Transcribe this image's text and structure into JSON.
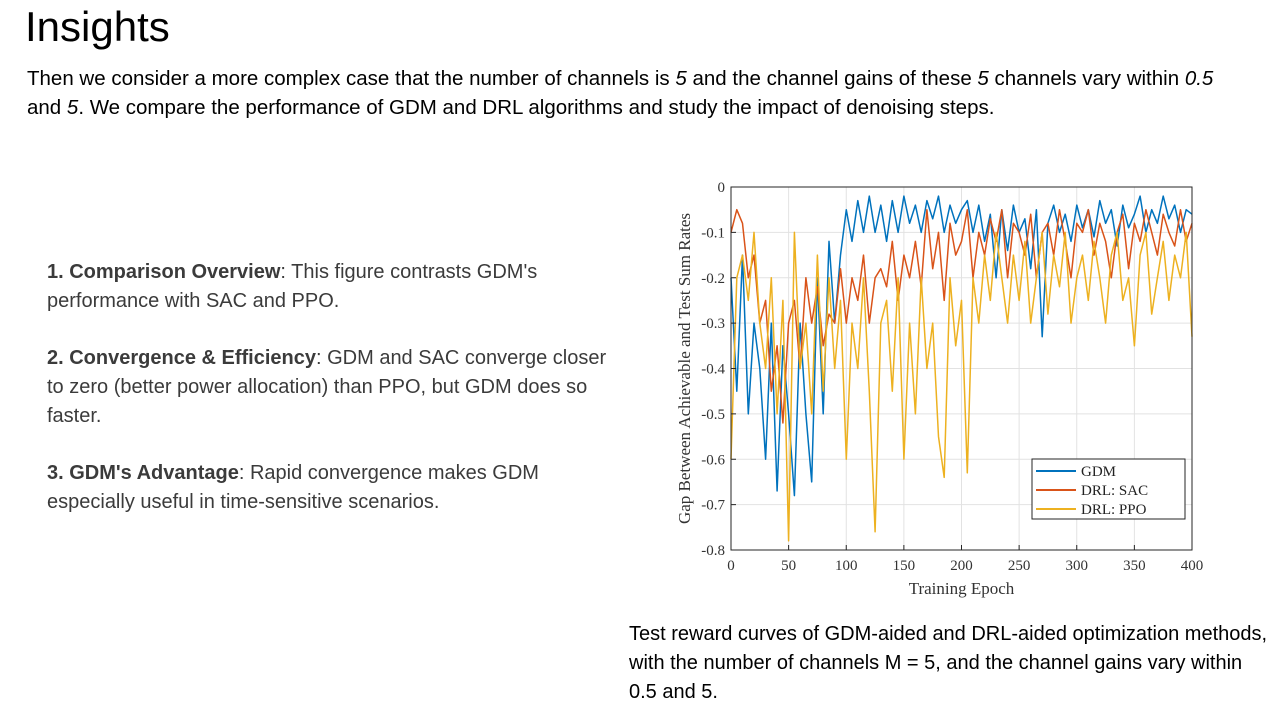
{
  "slide": {
    "title": "Insights",
    "intro": {
      "t1": "Then we consider a more complex case that the number of channels is ",
      "i1": "5",
      "t2": " and the channel gains of these ",
      "i2": "5",
      "t3": " channels vary within ",
      "i3": "0.5",
      "t4": " and ",
      "i4": "5",
      "t5": ". We compare the performance of GDM and DRL algorithms and study the impact of denoising steps."
    },
    "points": [
      {
        "head": "1. Comparison Overview",
        "body": ": This figure contrasts GDM's performance with SAC and PPO."
      },
      {
        "head": "2. Convergence & Efficiency",
        "body": ": GDM and SAC converge closer to zero (better power allocation) than PPO, but GDM does so faster."
      },
      {
        "head": "3. GDM's Advantage",
        "body": ": Rapid convergence makes GDM especially useful in time-sensitive scenarios."
      }
    ],
    "caption": "Test reward curves of GDM-aided and DRL-aided optimization methods, with the number of channels M = 5, and the channel gains vary within 0.5 and 5."
  },
  "chart_data": {
    "type": "line",
    "xlabel": "Training Epoch",
    "ylabel": "Gap Between Achievable and Test Sum Rates",
    "xlim": [
      0,
      400
    ],
    "ylim": [
      -0.8,
      0
    ],
    "xticks": [
      0,
      50,
      100,
      150,
      200,
      250,
      300,
      350,
      400
    ],
    "yticks": [
      0,
      -0.1,
      -0.2,
      -0.3,
      -0.4,
      -0.5,
      -0.6,
      -0.7,
      -0.8
    ],
    "grid": true,
    "legend_position": "bottom-right",
    "series": [
      {
        "name": "GDM",
        "color": "#0072BD",
        "x": [
          0,
          5,
          10,
          15,
          20,
          25,
          30,
          35,
          40,
          45,
          50,
          55,
          60,
          65,
          70,
          75,
          80,
          85,
          90,
          95,
          100,
          105,
          110,
          115,
          120,
          125,
          130,
          135,
          140,
          145,
          150,
          155,
          160,
          165,
          170,
          175,
          180,
          185,
          190,
          195,
          200,
          205,
          210,
          215,
          220,
          225,
          230,
          235,
          240,
          245,
          250,
          255,
          260,
          265,
          270,
          275,
          280,
          285,
          290,
          295,
          300,
          305,
          310,
          315,
          320,
          325,
          330,
          335,
          340,
          345,
          350,
          355,
          360,
          365,
          370,
          375,
          380,
          385,
          390,
          395,
          400
        ],
        "y": [
          -0.2,
          -0.45,
          -0.15,
          -0.5,
          -0.3,
          -0.4,
          -0.6,
          -0.3,
          -0.67,
          -0.35,
          -0.5,
          -0.68,
          -0.3,
          -0.5,
          -0.65,
          -0.2,
          -0.5,
          -0.12,
          -0.3,
          -0.15,
          -0.05,
          -0.12,
          -0.03,
          -0.1,
          -0.02,
          -0.1,
          -0.04,
          -0.12,
          -0.03,
          -0.1,
          -0.02,
          -0.08,
          -0.04,
          -0.1,
          -0.03,
          -0.07,
          -0.02,
          -0.1,
          -0.04,
          -0.08,
          -0.05,
          -0.03,
          -0.1,
          -0.04,
          -0.12,
          -0.06,
          -0.2,
          -0.05,
          -0.14,
          -0.04,
          -0.1,
          -0.07,
          -0.18,
          -0.05,
          -0.33,
          -0.08,
          -0.04,
          -0.1,
          -0.06,
          -0.12,
          -0.04,
          -0.09,
          -0.05,
          -0.11,
          -0.03,
          -0.08,
          -0.05,
          -0.13,
          -0.04,
          -0.09,
          -0.06,
          -0.02,
          -0.1,
          -0.05,
          -0.08,
          -0.02,
          -0.07,
          -0.04,
          -0.1,
          -0.05,
          -0.06
        ]
      },
      {
        "name": "DRL: SAC",
        "color": "#D95319",
        "x": [
          0,
          5,
          10,
          15,
          20,
          25,
          30,
          35,
          40,
          45,
          50,
          55,
          60,
          65,
          70,
          75,
          80,
          85,
          90,
          95,
          100,
          105,
          110,
          115,
          120,
          125,
          130,
          135,
          140,
          145,
          150,
          155,
          160,
          165,
          170,
          175,
          180,
          185,
          190,
          195,
          200,
          205,
          210,
          215,
          220,
          225,
          230,
          235,
          240,
          245,
          250,
          255,
          260,
          265,
          270,
          275,
          280,
          285,
          290,
          295,
          300,
          305,
          310,
          315,
          320,
          325,
          330,
          335,
          340,
          345,
          350,
          355,
          360,
          365,
          370,
          375,
          380,
          385,
          390,
          395,
          400
        ],
        "y": [
          -0.1,
          -0.05,
          -0.08,
          -0.2,
          -0.15,
          -0.3,
          -0.25,
          -0.45,
          -0.35,
          -0.52,
          -0.3,
          -0.25,
          -0.4,
          -0.2,
          -0.3,
          -0.22,
          -0.35,
          -0.28,
          -0.3,
          -0.18,
          -0.3,
          -0.2,
          -0.25,
          -0.15,
          -0.3,
          -0.2,
          -0.18,
          -0.22,
          -0.12,
          -0.25,
          -0.15,
          -0.2,
          -0.12,
          -0.22,
          -0.05,
          -0.18,
          -0.1,
          -0.25,
          -0.08,
          -0.15,
          -0.12,
          -0.05,
          -0.2,
          -0.1,
          -0.15,
          -0.07,
          -0.12,
          -0.05,
          -0.2,
          -0.08,
          -0.1,
          -0.15,
          -0.06,
          -0.2,
          -0.1,
          -0.08,
          -0.15,
          -0.05,
          -0.12,
          -0.2,
          -0.08,
          -0.1,
          -0.05,
          -0.15,
          -0.08,
          -0.12,
          -0.2,
          -0.1,
          -0.06,
          -0.18,
          -0.08,
          -0.12,
          -0.05,
          -0.1,
          -0.15,
          -0.06,
          -0.1,
          -0.13,
          -0.05,
          -0.12,
          -0.08
        ]
      },
      {
        "name": "DRL: PPO",
        "color": "#EDB120",
        "x": [
          0,
          5,
          10,
          15,
          20,
          25,
          30,
          35,
          40,
          45,
          50,
          55,
          60,
          65,
          70,
          75,
          80,
          85,
          90,
          95,
          100,
          105,
          110,
          115,
          120,
          125,
          130,
          135,
          140,
          145,
          150,
          155,
          160,
          165,
          170,
          175,
          180,
          185,
          190,
          195,
          200,
          205,
          210,
          215,
          220,
          225,
          230,
          235,
          240,
          245,
          250,
          255,
          260,
          265,
          270,
          275,
          280,
          285,
          290,
          295,
          300,
          305,
          310,
          315,
          320,
          325,
          330,
          335,
          340,
          345,
          350,
          355,
          360,
          365,
          370,
          375,
          380,
          385,
          390,
          395,
          400
        ],
        "y": [
          -0.6,
          -0.2,
          -0.15,
          -0.25,
          -0.1,
          -0.3,
          -0.4,
          -0.2,
          -0.5,
          -0.25,
          -0.78,
          -0.1,
          -0.4,
          -0.3,
          -0.5,
          -0.15,
          -0.45,
          -0.2,
          -0.4,
          -0.25,
          -0.6,
          -0.3,
          -0.4,
          -0.2,
          -0.45,
          -0.76,
          -0.3,
          -0.25,
          -0.45,
          -0.2,
          -0.6,
          -0.3,
          -0.5,
          -0.2,
          -0.4,
          -0.3,
          -0.55,
          -0.64,
          -0.2,
          -0.35,
          -0.25,
          -0.63,
          -0.2,
          -0.3,
          -0.15,
          -0.25,
          -0.1,
          -0.2,
          -0.3,
          -0.15,
          -0.25,
          -0.12,
          -0.3,
          -0.2,
          -0.1,
          -0.28,
          -0.15,
          -0.22,
          -0.1,
          -0.3,
          -0.2,
          -0.15,
          -0.25,
          -0.12,
          -0.2,
          -0.3,
          -0.15,
          -0.1,
          -0.25,
          -0.2,
          -0.35,
          -0.15,
          -0.1,
          -0.28,
          -0.2,
          -0.12,
          -0.25,
          -0.15,
          -0.2,
          -0.1,
          -0.33
        ]
      }
    ]
  }
}
